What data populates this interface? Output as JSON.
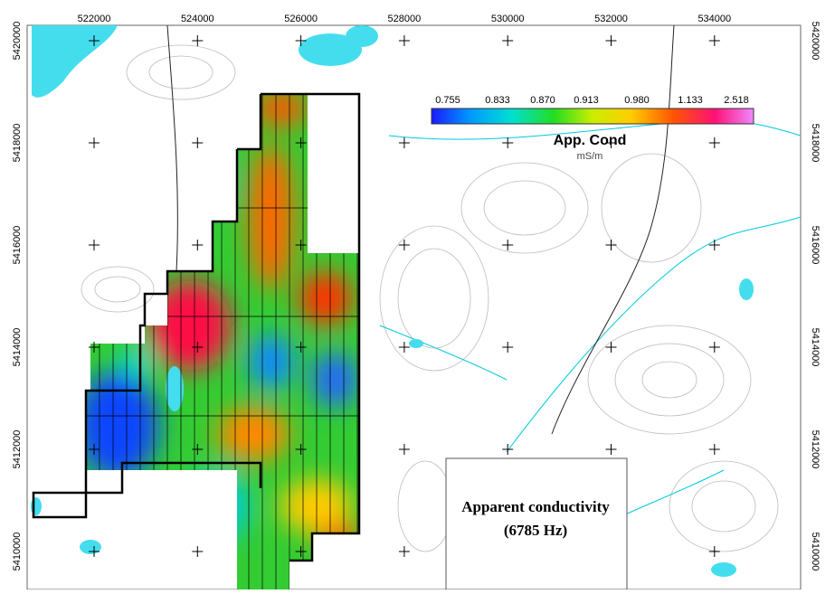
{
  "map": {
    "eastings": [
      522000,
      524000,
      526000,
      528000,
      530000,
      532000,
      534000
    ],
    "northings": [
      5420000,
      5418000,
      5416000,
      5414000,
      5412000,
      5410000
    ],
    "legend": {
      "ticks": [
        "0.755",
        "0.833",
        "0.870",
        "0.913",
        "0.980",
        "1.133",
        "2.518"
      ],
      "title": "App. Cond",
      "units": "mS/m"
    },
    "caption": {
      "line1": "Apparent conductivity",
      "line2": "(6785 Hz)"
    }
  }
}
